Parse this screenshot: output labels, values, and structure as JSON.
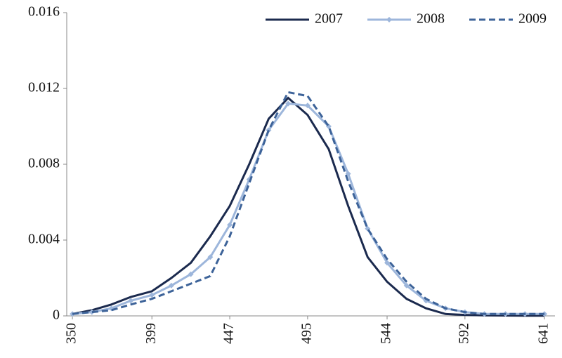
{
  "chart_data": {
    "type": "line",
    "x": [
      350,
      362,
      374,
      386,
      399,
      411,
      423,
      435,
      447,
      459,
      471,
      483,
      495,
      508,
      520,
      532,
      544,
      556,
      568,
      580,
      592,
      604,
      617,
      629,
      641
    ],
    "series": [
      {
        "name": "2007",
        "color": "#1b2a4e",
        "linestyle": "solid",
        "marker": "none",
        "values": [
          0.0001,
          0.0003,
          0.0006,
          0.001,
          0.0013,
          0.002,
          0.0028,
          0.0042,
          0.0058,
          0.008,
          0.0104,
          0.0115,
          0.0106,
          0.0088,
          0.0058,
          0.0031,
          0.0018,
          0.0009,
          0.0004,
          0.0001,
          5e-05,
          3e-05,
          2e-05,
          1e-05,
          1e-05
        ]
      },
      {
        "name": "2008",
        "color": "#9db6db",
        "linestyle": "solid",
        "marker": "diamond",
        "values": [
          0.0001,
          0.0002,
          0.0004,
          0.0008,
          0.0011,
          0.0016,
          0.0022,
          0.0031,
          0.0048,
          0.0072,
          0.0098,
          0.0112,
          0.0111,
          0.01,
          0.0075,
          0.0046,
          0.0028,
          0.0016,
          0.0008,
          0.0004,
          0.0002,
          0.0001,
          0.0001,
          0.0001,
          0.0001
        ]
      },
      {
        "name": "2009",
        "color": "#3d6399",
        "linestyle": "dashed",
        "marker": "none",
        "values": [
          0.0001,
          0.0002,
          0.0003,
          0.0006,
          0.0009,
          0.0013,
          0.0017,
          0.0021,
          0.0042,
          0.007,
          0.0098,
          0.0118,
          0.0116,
          0.01,
          0.0071,
          0.0046,
          0.003,
          0.0018,
          0.0009,
          0.0004,
          0.0002,
          0.0001,
          0.0001,
          0.0001,
          0.0001
        ]
      }
    ],
    "xlim": [
      346.5,
      647.5
    ],
    "xticks": [
      350,
      399,
      447,
      495,
      544,
      592,
      641
    ],
    "ylim": [
      0,
      0.016
    ],
    "yticks": [
      0,
      0.004,
      0.008,
      0.012,
      0.016
    ],
    "grid": false,
    "legend": "top-right"
  }
}
